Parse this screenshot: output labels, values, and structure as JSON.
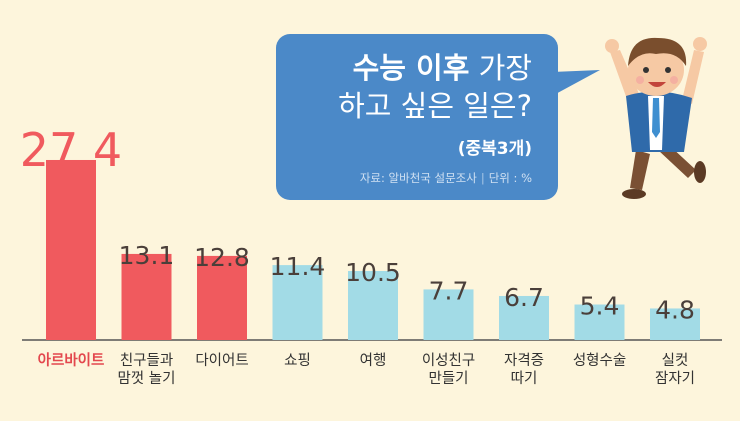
{
  "title": {
    "line1_bold": "수능 이후",
    "line1_rest": "가장",
    "line2": "하고 싶은 일은?",
    "note": "(중복3개)"
  },
  "source": {
    "label": "자료: 알바천국 설문조사",
    "unit": "단위 : %"
  },
  "colors": {
    "highlight": "#f05a5e",
    "normal": "#a2dbe6",
    "highlight_text": "#e3484e",
    "bubble": "#4b89c8",
    "background": "#fdf5dc"
  },
  "chart_data": {
    "type": "bar",
    "categories": [
      [
        "아르바이트"
      ],
      [
        "친구들과",
        "맘껏 놀기"
      ],
      [
        "다이어트"
      ],
      [
        "쇼핑"
      ],
      [
        "여행"
      ],
      [
        "이성친구",
        "만들기"
      ],
      [
        "자격증",
        "따기"
      ],
      [
        "성형수술"
      ],
      [
        "실컷",
        "잠자기"
      ]
    ],
    "values": [
      27.4,
      13.1,
      12.8,
      11.4,
      10.5,
      7.7,
      6.7,
      5.4,
      4.8
    ],
    "value_labels": [
      "27.4",
      "13.1",
      "12.8",
      "11.4",
      "10.5",
      "7.7",
      "6.7",
      "5.4",
      "4.8"
    ],
    "highlighted": [
      true,
      true,
      true,
      false,
      false,
      false,
      false,
      false,
      false
    ],
    "ylim": [
      0,
      30
    ],
    "grid": false
  }
}
